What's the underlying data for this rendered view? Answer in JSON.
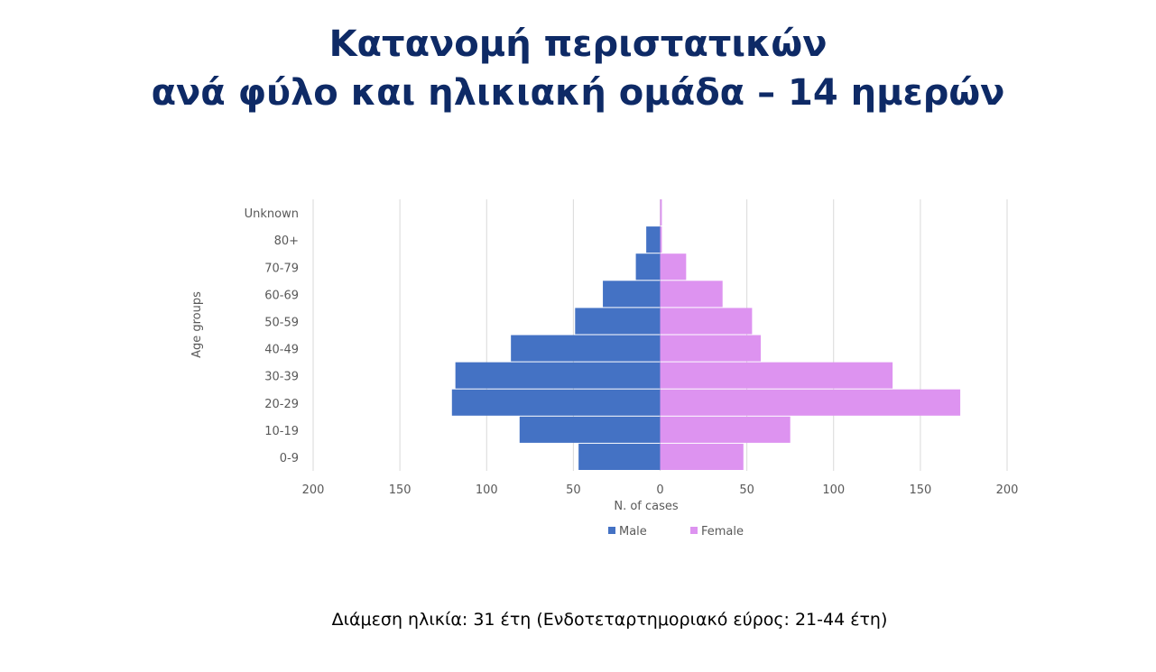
{
  "title": {
    "line1": "Κατανομή περιστατικών",
    "line2": "ανά φύλο και ηλικιακή ομάδα – 14 ημερών"
  },
  "footer": "Διάμεση ηλικία: 31 έτη (Ενδοτεταρτημοριακό εύρος: 21-44 έτη)",
  "colors": {
    "male": "#4472c4",
    "female": "#dd93f0",
    "grid": "#d9d9d9",
    "title": "#0e2a66"
  },
  "chart_data": {
    "type": "bar",
    "orientation": "horizontal",
    "layout": "population-pyramid",
    "categories": [
      "0-9",
      "10-19",
      "20-29",
      "30-39",
      "40-49",
      "50-59",
      "60-69",
      "70-79",
      "80+",
      "Unknown"
    ],
    "series": [
      {
        "name": "Male",
        "values": [
          47,
          81,
          120,
          118,
          86,
          49,
          33,
          14,
          8,
          0
        ]
      },
      {
        "name": "Female",
        "values": [
          48,
          75,
          173,
          134,
          58,
          53,
          36,
          15,
          1,
          1
        ]
      }
    ],
    "xlabel": "N. of cases",
    "ylabel": "Age groups",
    "xticks": [
      200,
      150,
      100,
      50,
      0,
      50,
      100,
      150,
      200
    ],
    "xlim": [
      -200,
      200
    ],
    "grid": true,
    "legend": "bottom"
  }
}
